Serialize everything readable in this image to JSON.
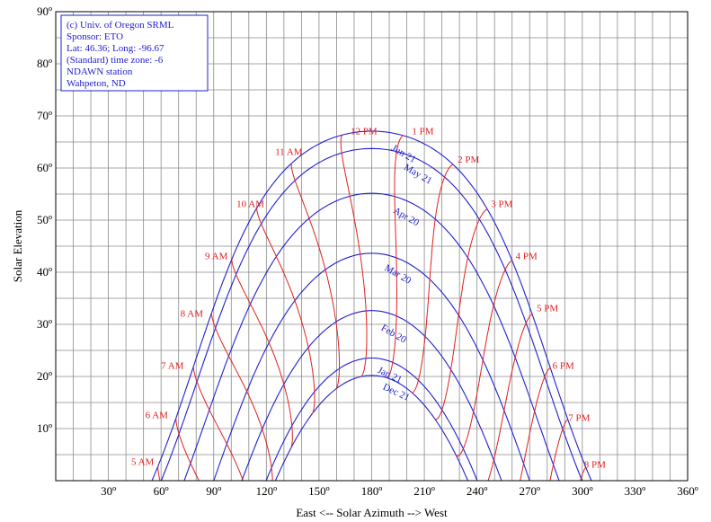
{
  "chart_data": {
    "type": "line",
    "title": "",
    "xlabel": "East <-- Solar Azimuth --> West",
    "ylabel": "Solar Elevation",
    "xlim": [
      0,
      360
    ],
    "ylim": [
      0,
      90
    ],
    "grid": true,
    "x_major_ticks": [
      30,
      60,
      90,
      120,
      150,
      180,
      210,
      240,
      270,
      300,
      330,
      360
    ],
    "x_tick_labels": [
      "30º",
      "60º",
      "90º",
      "120º",
      "150º",
      "180º",
      "210º",
      "240º",
      "270º",
      "300º",
      "330º",
      "360º"
    ],
    "y_major_ticks": [
      10,
      20,
      30,
      40,
      50,
      60,
      70,
      80,
      90
    ],
    "y_tick_labels": [
      "10º",
      "20º",
      "30º",
      "40º",
      "50º",
      "60º",
      "70º",
      "80º",
      "90º"
    ],
    "info_box": [
      "(c) Univ. of Oregon SRML",
      "Sponsor: ETO",
      "Lat: 46.36; Long: -96.67",
      "(Standard) time zone: -6",
      "NDAWN station",
      "Wahpeton, ND"
    ],
    "colors": {
      "date_lines": "#2020d0",
      "hour_lines": "#e02020",
      "grid": "#8a8a8a"
    },
    "date_series": [
      {
        "name": "Jun 21",
        "declination": 23.44,
        "label_at": [
          191,
          63.5
        ],
        "label_rotate": 30
      },
      {
        "name": "May 21",
        "declination": 20.1,
        "label_at": [
          198,
          59.8
        ],
        "label_rotate": 30
      },
      {
        "name": "Apr 20",
        "declination": 11.5,
        "label_at": [
          192,
          51.5
        ],
        "label_rotate": 30
      },
      {
        "name": "Mar 20",
        "declination": 0.0,
        "label_at": [
          187,
          40.5
        ],
        "label_rotate": 30
      },
      {
        "name": "Feb 20",
        "declination": -11.0,
        "label_at": [
          185,
          29.0
        ],
        "label_rotate": 30
      },
      {
        "name": "Jan 21",
        "declination": -20.1,
        "label_at": [
          183,
          20.8
        ],
        "label_rotate": 25
      },
      {
        "name": "Dec 21",
        "declination": -23.44,
        "label_at": [
          186,
          17.6
        ],
        "label_rotate": 25
      }
    ],
    "hour_series": [
      {
        "name": "5 AM",
        "hour": 5,
        "label_at": [
          43,
          3.0
        ]
      },
      {
        "name": "6 AM",
        "hour": 6,
        "label_at": [
          51,
          12.0
        ]
      },
      {
        "name": "7 AM",
        "hour": 7,
        "label_at": [
          60,
          21.5
        ]
      },
      {
        "name": "8 AM",
        "hour": 8,
        "label_at": [
          71,
          31.5
        ]
      },
      {
        "name": "9 AM",
        "hour": 9,
        "label_at": [
          85,
          42.5
        ]
      },
      {
        "name": "10 AM",
        "hour": 10,
        "label_at": [
          103,
          52.5
        ]
      },
      {
        "name": "11 AM",
        "hour": 11,
        "label_at": [
          125,
          62.5
        ]
      },
      {
        "name": "12 PM",
        "hour": 12,
        "label_at": [
          168,
          66.5
        ]
      },
      {
        "name": "1 PM",
        "hour": 13,
        "label_at": [
          203,
          66.5
        ]
      },
      {
        "name": "2 PM",
        "hour": 14,
        "label_at": [
          229,
          61.0
        ]
      },
      {
        "name": "3 PM",
        "hour": 15,
        "label_at": [
          248,
          52.5
        ]
      },
      {
        "name": "4 PM",
        "hour": 16,
        "label_at": [
          262,
          42.5
        ]
      },
      {
        "name": "5 PM",
        "hour": 17,
        "label_at": [
          274,
          32.5
        ]
      },
      {
        "name": "6 PM",
        "hour": 18,
        "label_at": [
          283,
          21.5
        ]
      },
      {
        "name": "7 PM",
        "hour": 19,
        "label_at": [
          292,
          11.5
        ]
      },
      {
        "name": "8 PM",
        "hour": 20,
        "label_at": [
          301,
          2.5
        ]
      }
    ],
    "latitude": 46.36,
    "longitude": -96.67,
    "time_zone": -6
  }
}
